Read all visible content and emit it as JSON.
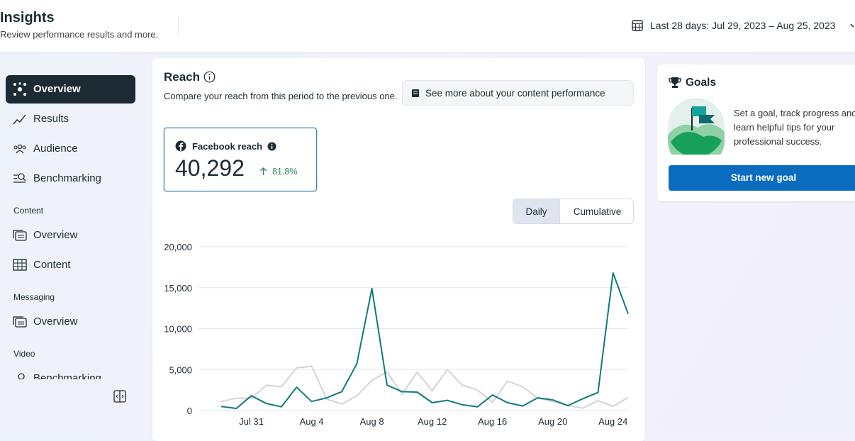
{
  "header": {
    "title": "Insights",
    "subtitle": "Review performance results and more.",
    "date_range": "Last 28 days: Jul 29, 2023 – Aug 25, 2023"
  },
  "nav": {
    "items": [
      "Overview",
      "Results",
      "Audience",
      "Benchmarking"
    ],
    "sections": [
      {
        "title": "Content",
        "items": [
          "Overview",
          "Content"
        ]
      },
      {
        "title": "Messaging",
        "items": [
          "Overview"
        ]
      },
      {
        "title": "Video",
        "items": [
          "Benchmarking"
        ]
      }
    ]
  },
  "reach": {
    "title": "Reach",
    "description": "Compare your reach from this period to the previous one.",
    "link": "See more about your content performance",
    "metric_label": "Facebook reach",
    "metric_value": "40,292",
    "change": "81.8%",
    "toggle": [
      "Daily",
      "Cumulative"
    ]
  },
  "goals": {
    "title": "Goals",
    "text": "Set a goal, track progress and learn helpful tips for your professional success.",
    "button": "Start new goal"
  },
  "chart_data": {
    "type": "line",
    "categories": [
      null,
      null,
      "Jul 31",
      null,
      null,
      null,
      "Aug 4",
      null,
      null,
      null,
      "Aug 8",
      null,
      null,
      null,
      "Aug 12",
      null,
      null,
      null,
      "Aug 16",
      null,
      null,
      null,
      "Aug 20",
      null,
      null,
      null,
      "Aug 24",
      null
    ],
    "series": [
      {
        "color": "#d3d3d3",
        "values": [
          1100,
          1500,
          1500,
          3100,
          2900,
          5200,
          5400,
          1400,
          800,
          1800,
          3700,
          4700,
          2000,
          4700,
          2400,
          5000,
          3100,
          2500,
          1000,
          3600,
          2900,
          1500,
          1100,
          600,
          300,
          1200,
          500,
          1600
        ]
      },
      {
        "color": "#0f7b7b",
        "values": [
          500,
          250,
          1800,
          850,
          450,
          2850,
          1100,
          1550,
          2300,
          5700,
          14900,
          3100,
          2300,
          2250,
          950,
          1250,
          700,
          450,
          1900,
          950,
          550,
          1550,
          1300,
          600,
          1450,
          2200,
          16800,
          11800
        ]
      }
    ],
    "ylim": [
      0,
      20000
    ],
    "yticks": [
      0,
      {
        "value": 5000,
        "label": "5,000"
      },
      {
        "value": 10000,
        "label": "10,000"
      },
      {
        "value": 15000,
        "label": "15,000"
      },
      {
        "value": 20000,
        "label": "20,000"
      }
    ],
    "grid": true
  }
}
